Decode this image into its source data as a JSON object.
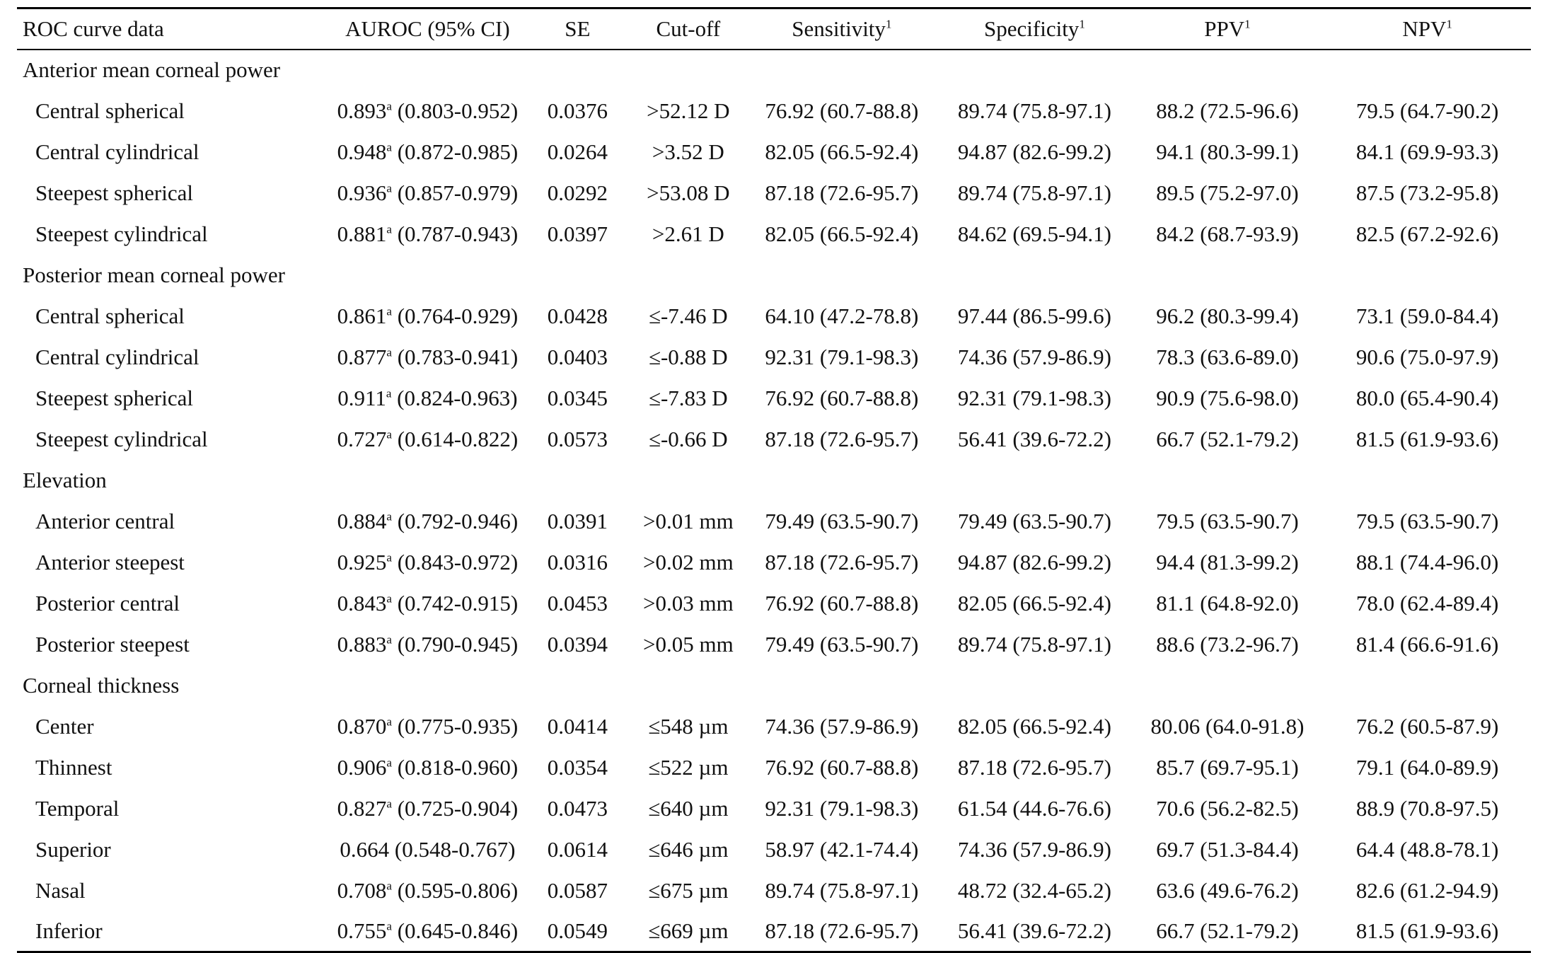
{
  "table": {
    "headers": [
      {
        "text": "ROC curve data",
        "sup": ""
      },
      {
        "text": "AUROC (95% CI)",
        "sup": ""
      },
      {
        "text": "SE",
        "sup": ""
      },
      {
        "text": "Cut-off",
        "sup": ""
      },
      {
        "text": "Sensitivity",
        "sup": "1"
      },
      {
        "text": "Specificity",
        "sup": "1"
      },
      {
        "text": "PPV",
        "sup": "1"
      },
      {
        "text": "NPV",
        "sup": "1"
      }
    ],
    "groups": [
      {
        "title": "Anterior mean corneal power",
        "rows": [
          {
            "label": "Central spherical",
            "auroc": "0.893",
            "sup": "a",
            "ci": "(0.803-0.952)",
            "se": "0.0376",
            "cutoff": ">52.12 D",
            "sens": "76.92 (60.7-88.8)",
            "spec": "89.74 (75.8-97.1)",
            "ppv": "88.2 (72.5-96.6)",
            "npv": "79.5 (64.7-90.2)"
          },
          {
            "label": "Central cylindrical",
            "auroc": "0.948",
            "sup": "a",
            "ci": "(0.872-0.985)",
            "se": "0.0264",
            "cutoff": ">3.52 D",
            "sens": "82.05 (66.5-92.4)",
            "spec": "94.87 (82.6-99.2)",
            "ppv": "94.1 (80.3-99.1)",
            "npv": "84.1 (69.9-93.3)"
          },
          {
            "label": "Steepest spherical",
            "auroc": "0.936",
            "sup": "a",
            "ci": "(0.857-0.979)",
            "se": "0.0292",
            "cutoff": ">53.08 D",
            "sens": "87.18 (72.6-95.7)",
            "spec": "89.74 (75.8-97.1)",
            "ppv": "89.5 (75.2-97.0)",
            "npv": "87.5 (73.2-95.8)"
          },
          {
            "label": "Steepest cylindrical",
            "auroc": "0.881",
            "sup": "a",
            "ci": "(0.787-0.943)",
            "se": "0.0397",
            "cutoff": ">2.61 D",
            "sens": "82.05 (66.5-92.4)",
            "spec": "84.62 (69.5-94.1)",
            "ppv": "84.2 (68.7-93.9)",
            "npv": "82.5 (67.2-92.6)"
          }
        ]
      },
      {
        "title": "Posterior mean corneal power",
        "rows": [
          {
            "label": "Central spherical",
            "auroc": "0.861",
            "sup": "a",
            "ci": "(0.764-0.929)",
            "se": "0.0428",
            "cutoff": "≤-7.46 D",
            "sens": "64.10 (47.2-78.8)",
            "spec": "97.44 (86.5-99.6)",
            "ppv": "96.2 (80.3-99.4)",
            "npv": "73.1 (59.0-84.4)"
          },
          {
            "label": "Central cylindrical",
            "auroc": "0.877",
            "sup": "a",
            "ci": "(0.783-0.941)",
            "se": "0.0403",
            "cutoff": "≤-0.88 D",
            "sens": "92.31 (79.1-98.3)",
            "spec": "74.36 (57.9-86.9)",
            "ppv": "78.3 (63.6-89.0)",
            "npv": "90.6 (75.0-97.9)"
          },
          {
            "label": "Steepest spherical",
            "auroc": "0.911",
            "sup": "a",
            "ci": "(0.824-0.963)",
            "se": "0.0345",
            "cutoff": "≤-7.83 D",
            "sens": "76.92 (60.7-88.8)",
            "spec": "92.31 (79.1-98.3)",
            "ppv": "90.9 (75.6-98.0)",
            "npv": "80.0 (65.4-90.4)"
          },
          {
            "label": "Steepest cylindrical",
            "auroc": "0.727",
            "sup": "a",
            "ci": "(0.614-0.822)",
            "se": "0.0573",
            "cutoff": "≤-0.66 D",
            "sens": "87.18 (72.6-95.7)",
            "spec": "56.41 (39.6-72.2)",
            "ppv": "66.7 (52.1-79.2)",
            "npv": "81.5 (61.9-93.6)"
          }
        ]
      },
      {
        "title": "Elevation",
        "rows": [
          {
            "label": "Anterior central",
            "auroc": "0.884",
            "sup": "a",
            "ci": "(0.792-0.946)",
            "se": "0.0391",
            "cutoff": ">0.01 mm",
            "sens": "79.49 (63.5-90.7)",
            "spec": "79.49 (63.5-90.7)",
            "ppv": "79.5 (63.5-90.7)",
            "npv": "79.5 (63.5-90.7)"
          },
          {
            "label": "Anterior steepest",
            "auroc": "0.925",
            "sup": "a",
            "ci": "(0.843-0.972)",
            "se": "0.0316",
            "cutoff": ">0.02 mm",
            "sens": "87.18 (72.6-95.7)",
            "spec": "94.87 (82.6-99.2)",
            "ppv": "94.4 (81.3-99.2)",
            "npv": "88.1 (74.4-96.0)"
          },
          {
            "label": "Posterior central",
            "auroc": "0.843",
            "sup": "a",
            "ci": "(0.742-0.915)",
            "se": "0.0453",
            "cutoff": ">0.03 mm",
            "sens": "76.92 (60.7-88.8)",
            "spec": "82.05 (66.5-92.4)",
            "ppv": "81.1 (64.8-92.0)",
            "npv": "78.0 (62.4-89.4)"
          },
          {
            "label": "Posterior steepest",
            "auroc": "0.883",
            "sup": "a",
            "ci": "(0.790-0.945)",
            "se": "0.0394",
            "cutoff": ">0.05 mm",
            "sens": "79.49 (63.5-90.7)",
            "spec": "89.74 (75.8-97.1)",
            "ppv": "88.6 (73.2-96.7)",
            "npv": "81.4 (66.6-91.6)"
          }
        ]
      },
      {
        "title": "Corneal thickness",
        "rows": [
          {
            "label": "Center",
            "auroc": "0.870",
            "sup": "a",
            "ci": "(0.775-0.935)",
            "se": "0.0414",
            "cutoff": "≤548 µm",
            "sens": "74.36 (57.9-86.9)",
            "spec": "82.05 (66.5-92.4)",
            "ppv": "80.06 (64.0-91.8)",
            "npv": "76.2 (60.5-87.9)"
          },
          {
            "label": "Thinnest",
            "auroc": "0.906",
            "sup": "a",
            "ci": "(0.818-0.960)",
            "se": "0.0354",
            "cutoff": "≤522 µm",
            "sens": "76.92 (60.7-88.8)",
            "spec": "87.18 (72.6-95.7)",
            "ppv": "85.7 (69.7-95.1)",
            "npv": "79.1 (64.0-89.9)"
          },
          {
            "label": "Temporal",
            "auroc": "0.827",
            "sup": "a",
            "ci": "(0.725-0.904)",
            "se": "0.0473",
            "cutoff": "≤640 µm",
            "sens": "92.31 (79.1-98.3)",
            "spec": "61.54 (44.6-76.6)",
            "ppv": "70.6 (56.2-82.5)",
            "npv": "88.9 (70.8-97.5)"
          },
          {
            "label": "Superior",
            "auroc": "0.664",
            "sup": "",
            "ci": "(0.548-0.767)",
            "se": "0.0614",
            "cutoff": "≤646 µm",
            "sens": "58.97 (42.1-74.4)",
            "spec": "74.36 (57.9-86.9)",
            "ppv": "69.7 (51.3-84.4)",
            "npv": "64.4 (48.8-78.1)"
          },
          {
            "label": "Nasal",
            "auroc": "0.708",
            "sup": "a",
            "ci": "(0.595-0.806)",
            "se": "0.0587",
            "cutoff": "≤675 µm",
            "sens": "89.74 (75.8-97.1)",
            "spec": "48.72 (32.4-65.2)",
            "ppv": "63.6 (49.6-76.2)",
            "npv": "82.6 (61.2-94.9)"
          },
          {
            "label": "Inferior",
            "auroc": "0.755",
            "sup": "a",
            "ci": "(0.645-0.846)",
            "se": "0.0549",
            "cutoff": "≤669 µm",
            "sens": "87.18 (72.6-95.7)",
            "spec": "56.41 (39.6-72.2)",
            "ppv": "66.7 (52.1-79.2)",
            "npv": "81.5 (61.9-93.6)"
          }
        ]
      }
    ]
  }
}
